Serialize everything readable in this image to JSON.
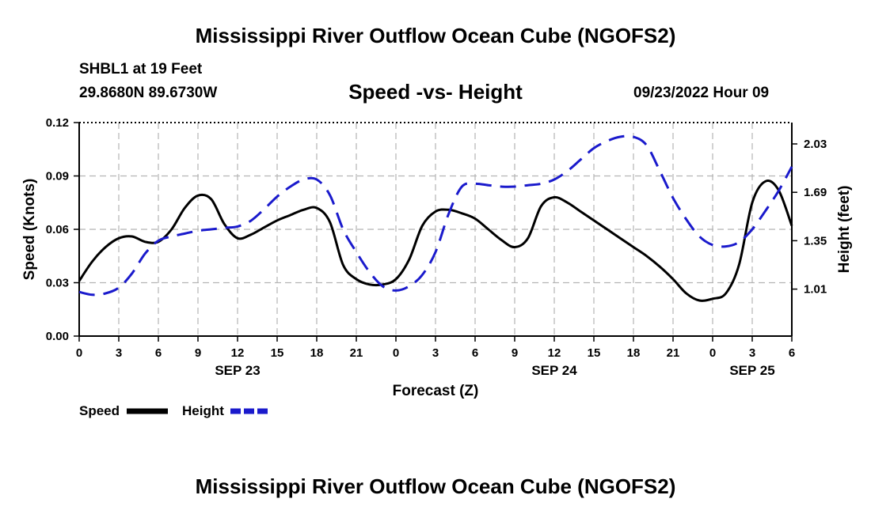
{
  "page": {
    "title": "Mississippi River Outflow Ocean Cube (NGOFS2)",
    "station": "SHBL1 at 19 Feet",
    "coords": "29.8680N  89.6730W",
    "date": "09/23/2022 Hour 09",
    "footer_title": "Mississippi River Outflow Ocean Cube (NGOFS2)"
  },
  "chart_data": {
    "type": "line",
    "title": "Speed -vs- Height",
    "xlabel": "Forecast (Z)",
    "ylabel": "Speed (Knots)",
    "y2label": "Height (feet)",
    "xlim": [
      0,
      54
    ],
    "ylim": [
      0,
      0.12
    ],
    "y2lim": [
      0.68,
      2.18
    ],
    "x_ticks": [
      0,
      3,
      6,
      9,
      12,
      15,
      18,
      21,
      24,
      27,
      30,
      33,
      36,
      39,
      42,
      45,
      48,
      51,
      54
    ],
    "x_tick_labels": [
      "0",
      "3",
      "6",
      "9",
      "12",
      "15",
      "18",
      "21",
      "0",
      "3",
      "6",
      "9",
      "12",
      "15",
      "18",
      "21",
      "0",
      "3",
      "6"
    ],
    "y_ticks": [
      0,
      0.03,
      0.06,
      0.09,
      0.12
    ],
    "y_tick_labels": [
      "0.00",
      "0.03",
      "0.06",
      "0.09",
      "0.12"
    ],
    "y2_ticks": [
      1.01,
      1.35,
      1.69,
      2.03
    ],
    "y2_tick_labels": [
      "1.01",
      "1.35",
      "1.69",
      "2.03"
    ],
    "date_labels": [
      {
        "x": 12,
        "label": "SEP 23"
      },
      {
        "x": 36,
        "label": "SEP 24"
      },
      {
        "x": 51,
        "label": "SEP 25"
      }
    ],
    "grid": true,
    "legend": [
      "Speed",
      "Height"
    ],
    "legend_placement": "bottom-left",
    "series": [
      {
        "name": "Speed",
        "axis": "left",
        "color": "#000000",
        "dash": "solid",
        "points": [
          [
            0,
            0.031
          ],
          [
            1,
            0.042
          ],
          [
            2,
            0.05
          ],
          [
            3,
            0.055
          ],
          [
            4,
            0.056
          ],
          [
            5,
            0.053
          ],
          [
            6,
            0.053
          ],
          [
            7,
            0.06
          ],
          [
            8,
            0.072
          ],
          [
            9,
            0.079
          ],
          [
            10,
            0.077
          ],
          [
            11,
            0.063
          ],
          [
            12,
            0.055
          ],
          [
            13,
            0.057
          ],
          [
            14,
            0.061
          ],
          [
            15,
            0.065
          ],
          [
            16,
            0.068
          ],
          [
            17,
            0.071
          ],
          [
            18,
            0.072
          ],
          [
            19,
            0.064
          ],
          [
            20,
            0.04
          ],
          [
            21,
            0.032
          ],
          [
            22,
            0.029
          ],
          [
            23,
            0.029
          ],
          [
            24,
            0.032
          ],
          [
            25,
            0.043
          ],
          [
            26,
            0.062
          ],
          [
            27,
            0.07
          ],
          [
            28,
            0.071
          ],
          [
            29,
            0.069
          ],
          [
            30,
            0.066
          ],
          [
            31,
            0.06
          ],
          [
            32,
            0.054
          ],
          [
            33,
            0.05
          ],
          [
            34,
            0.055
          ],
          [
            35,
            0.073
          ],
          [
            36,
            0.078
          ],
          [
            37,
            0.075
          ],
          [
            38,
            0.07
          ],
          [
            39,
            0.065
          ],
          [
            40,
            0.06
          ],
          [
            41,
            0.055
          ],
          [
            42,
            0.05
          ],
          [
            43,
            0.045
          ],
          [
            44,
            0.039
          ],
          [
            45,
            0.032
          ],
          [
            46,
            0.024
          ],
          [
            47,
            0.02
          ],
          [
            48,
            0.021
          ],
          [
            49,
            0.024
          ],
          [
            50,
            0.04
          ],
          [
            51,
            0.075
          ],
          [
            52,
            0.087
          ],
          [
            53,
            0.082
          ],
          [
            54,
            0.062
          ]
        ]
      },
      {
        "name": "Height",
        "axis": "right",
        "color": "#1a1acc",
        "dash": "dashed",
        "points": [
          [
            0,
            0.99
          ],
          [
            1,
            0.97
          ],
          [
            2,
            0.98
          ],
          [
            3,
            1.02
          ],
          [
            4,
            1.12
          ],
          [
            5,
            1.26
          ],
          [
            6,
            1.35
          ],
          [
            7,
            1.38
          ],
          [
            8,
            1.4
          ],
          [
            9,
            1.42
          ],
          [
            10,
            1.43
          ],
          [
            11,
            1.44
          ],
          [
            12,
            1.45
          ],
          [
            13,
            1.49
          ],
          [
            14,
            1.57
          ],
          [
            15,
            1.66
          ],
          [
            16,
            1.73
          ],
          [
            17,
            1.78
          ],
          [
            18,
            1.78
          ],
          [
            19,
            1.67
          ],
          [
            20,
            1.43
          ],
          [
            21,
            1.27
          ],
          [
            22,
            1.13
          ],
          [
            23,
            1.03
          ],
          [
            24,
            1.0
          ],
          [
            25,
            1.03
          ],
          [
            26,
            1.11
          ],
          [
            27,
            1.27
          ],
          [
            28,
            1.54
          ],
          [
            29,
            1.73
          ],
          [
            30,
            1.75
          ],
          [
            31,
            1.74
          ],
          [
            32,
            1.73
          ],
          [
            33,
            1.73
          ],
          [
            34,
            1.74
          ],
          [
            35,
            1.75
          ],
          [
            36,
            1.78
          ],
          [
            37,
            1.84
          ],
          [
            38,
            1.92
          ],
          [
            39,
            2.0
          ],
          [
            40,
            2.05
          ],
          [
            41,
            2.08
          ],
          [
            42,
            2.08
          ],
          [
            43,
            2.02
          ],
          [
            44,
            1.84
          ],
          [
            45,
            1.65
          ],
          [
            46,
            1.5
          ],
          [
            47,
            1.38
          ],
          [
            48,
            1.32
          ],
          [
            49,
            1.31
          ],
          [
            50,
            1.34
          ],
          [
            51,
            1.43
          ],
          [
            52,
            1.56
          ],
          [
            53,
            1.7
          ],
          [
            54,
            1.87
          ]
        ]
      }
    ]
  }
}
